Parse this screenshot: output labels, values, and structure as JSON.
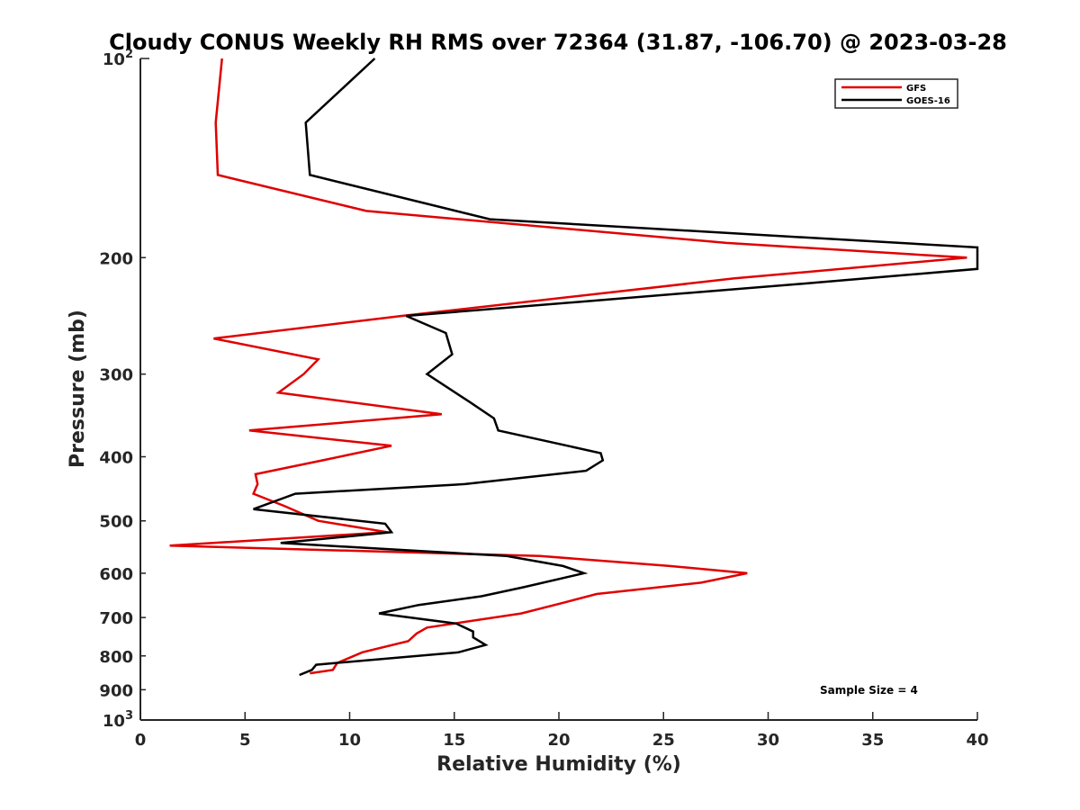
{
  "chart_data": {
    "type": "line",
    "title": "Cloudy CONUS Weekly RH RMS over 72364 (31.87, -106.70) @ 2023-03-28",
    "xlabel": "Relative Humidity (%)",
    "ylabel": "Pressure (mb)",
    "xlim": [
      0,
      40
    ],
    "ylim": [
      100,
      1000
    ],
    "y_scale": "log",
    "y_reversed": true,
    "grid": false,
    "legend_position": "top-right",
    "x_ticks": [
      "0",
      "5",
      "10",
      "15",
      "20",
      "25",
      "30",
      "35",
      "40"
    ],
    "y_ticks": [
      {
        "value": 100,
        "base": "10",
        "exp": "2"
      },
      {
        "value": 200,
        "label": "200"
      },
      {
        "value": 300,
        "label": "300"
      },
      {
        "value": 400,
        "label": "400"
      },
      {
        "value": 500,
        "label": "500"
      },
      {
        "value": 600,
        "label": "600"
      },
      {
        "value": 700,
        "label": "700"
      },
      {
        "value": 800,
        "label": "800"
      },
      {
        "value": 900,
        "label": "900"
      },
      {
        "value": 1000,
        "base": "10",
        "exp": "3"
      }
    ],
    "annotation": "Sample Size = 4",
    "series": [
      {
        "name": "GFS",
        "color": "#e00000",
        "points": [
          [
            3.9,
            100
          ],
          [
            3.6,
            125
          ],
          [
            3.7,
            150
          ],
          [
            10.8,
            170
          ],
          [
            28,
            190
          ],
          [
            39.5,
            200
          ],
          [
            28.4,
            215
          ],
          [
            12.5,
            245
          ],
          [
            3.5,
            265
          ],
          [
            8.5,
            285
          ],
          [
            7.8,
            300
          ],
          [
            6.6,
            320
          ],
          [
            14.4,
            345
          ],
          [
            5.2,
            365
          ],
          [
            12,
            385
          ],
          [
            8.7,
            405
          ],
          [
            5.5,
            425
          ],
          [
            5.6,
            440
          ],
          [
            5.4,
            455
          ],
          [
            6.9,
            475
          ],
          [
            8.5,
            500
          ],
          [
            11.8,
            520
          ],
          [
            1.4,
            545
          ],
          [
            19.1,
            565
          ],
          [
            25.3,
            585
          ],
          [
            29.0,
            600
          ],
          [
            26.8,
            620
          ],
          [
            21.8,
            645
          ],
          [
            20.2,
            665
          ],
          [
            18.2,
            690
          ],
          [
            13.7,
            725
          ],
          [
            13.2,
            740
          ],
          [
            12.8,
            760
          ],
          [
            10.6,
            790
          ],
          [
            9.4,
            820
          ],
          [
            9.2,
            840
          ],
          [
            8.1,
            850
          ]
        ]
      },
      {
        "name": "GOES-16",
        "color": "#000000",
        "points": [
          [
            11.2,
            100
          ],
          [
            7.9,
            125
          ],
          [
            8.1,
            150
          ],
          [
            16.7,
            175
          ],
          [
            40.0,
            193
          ],
          [
            40.0,
            208
          ],
          [
            32.4,
            218
          ],
          [
            12.7,
            245
          ],
          [
            14.6,
            260
          ],
          [
            14.9,
            280
          ],
          [
            13.7,
            300
          ],
          [
            15.7,
            330
          ],
          [
            16.9,
            350
          ],
          [
            17.1,
            365
          ],
          [
            22.0,
            395
          ],
          [
            22.1,
            405
          ],
          [
            21.3,
            420
          ],
          [
            15.5,
            440
          ],
          [
            7.4,
            455
          ],
          [
            5.4,
            480
          ],
          [
            11.7,
            505
          ],
          [
            12,
            520
          ],
          [
            6.7,
            540
          ],
          [
            17.5,
            565
          ],
          [
            20.2,
            585
          ],
          [
            21.2,
            600
          ],
          [
            18.3,
            630
          ],
          [
            16.3,
            650
          ],
          [
            13.3,
            670
          ],
          [
            11.4,
            690
          ],
          [
            15.1,
            715
          ],
          [
            15.9,
            735
          ],
          [
            15.9,
            750
          ],
          [
            16.5,
            770
          ],
          [
            15.2,
            790
          ],
          [
            8.4,
            825
          ],
          [
            8.2,
            840
          ],
          [
            7.6,
            855
          ]
        ]
      }
    ]
  }
}
